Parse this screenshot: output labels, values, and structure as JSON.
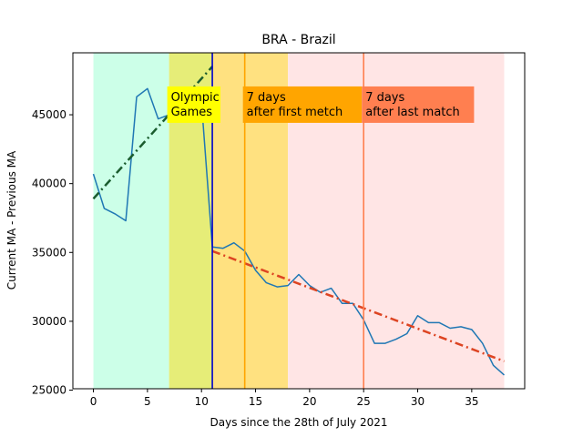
{
  "chart_data": {
    "type": "line",
    "title": "BRA - Brazil",
    "xlabel": "Days since the 28th of July 2021",
    "ylabel": "Current MA - Previous MA",
    "xlim": [
      -1.9,
      39.9
    ],
    "ylim": [
      25100,
      49500
    ],
    "x_ticks": [
      0,
      5,
      10,
      15,
      20,
      25,
      30,
      35
    ],
    "y_ticks": [
      25000,
      30000,
      35000,
      40000,
      45000
    ],
    "grid": false,
    "regions": [
      {
        "x0": 0,
        "x1": 7,
        "color": "#ccffe8"
      },
      {
        "x0": 7,
        "x1": 11,
        "color": "#e6ed78"
      },
      {
        "x0": 11,
        "x1": 18,
        "color": "#ffe180"
      },
      {
        "x0": 18,
        "x1": 38,
        "color": "#ffe5e5"
      }
    ],
    "vlines": [
      {
        "x": 11,
        "color": "#0000cc"
      },
      {
        "x": 14,
        "color": "#ffa500"
      },
      {
        "x": 25,
        "color": "#ff7f50"
      }
    ],
    "annotations": [
      {
        "text_lines": [
          "Olympic",
          "Games"
        ],
        "x": 7,
        "y": 46000,
        "bg": "#ffff00"
      },
      {
        "text_lines": [
          "7 days",
          "after first metch"
        ],
        "x": 14,
        "y": 46000,
        "bg": "#ffa500"
      },
      {
        "text_lines": [
          "7 days",
          "after last match"
        ],
        "x": 25,
        "y": 46000,
        "bg": "#ff7f50"
      }
    ],
    "series": [
      {
        "color": "#1f77b4",
        "style": "solid",
        "x": [
          0,
          1,
          2,
          3,
          4,
          5,
          6,
          7,
          8,
          9,
          10,
          11,
          12,
          13,
          14,
          15,
          16,
          17,
          18,
          19,
          20,
          21,
          22,
          23,
          24,
          25,
          26,
          27,
          28,
          29,
          30,
          31,
          32,
          33,
          34,
          35,
          36,
          37,
          38
        ],
        "y": [
          40700,
          38200,
          37800,
          37300,
          46300,
          46900,
          44700,
          45000,
          45500,
          45700,
          45900,
          35400,
          35300,
          35700,
          35100,
          33700,
          32800,
          32500,
          32600,
          33400,
          32600,
          32100,
          32400,
          31300,
          31300,
          30100,
          28400,
          28400,
          28700,
          29100,
          30400,
          29900,
          29900,
          29500,
          29600,
          29400,
          28400,
          26800,
          26100
        ]
      },
      {
        "color": "#1a5c2e",
        "style": "dashdot",
        "x": [
          0,
          11
        ],
        "y": [
          38900,
          48500
        ]
      },
      {
        "color": "#dd4422",
        "style": "dashdot",
        "x": [
          11,
          38
        ],
        "y": [
          35100,
          27100
        ]
      }
    ]
  }
}
